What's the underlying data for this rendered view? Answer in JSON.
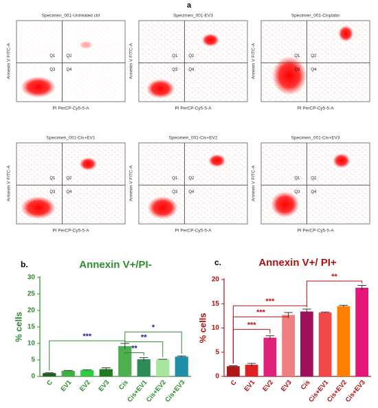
{
  "panel_a": {
    "label": "a",
    "plots": [
      {
        "title": "Specimen_001-Untreated ctrl",
        "x_label": "PI PerCP-Cy5-5-A",
        "y_label": "Annexin V FITC-A",
        "quadrants": [
          "Q1",
          "Q2",
          "Q3",
          "Q4"
        ]
      },
      {
        "title": "Specimen_001-EV3",
        "x_label": "PI PerCP-Cy5-5-A",
        "y_label": "Annexin V FITC-A",
        "quadrants": [
          "Q1",
          "Q2",
          "Q3",
          "Q4"
        ]
      },
      {
        "title": "Specimen_001-Cisplatin",
        "x_label": "PI PerCP-Cy5-5-A",
        "y_label": "Annexin V FITC-A",
        "quadrants": [
          "Q1",
          "Q2",
          "Q3",
          "Q4"
        ]
      },
      {
        "title": "Specimen_001-Cis+EV1",
        "x_label": "PI PerCP-Cy5-5-A",
        "y_label": "Annexin V FITC-A",
        "quadrants": [
          "Q1",
          "Q2",
          "Q3",
          "Q4"
        ]
      },
      {
        "title": "Specimen_001-Cis+EV2",
        "x_label": "PI PerCP-Cy5-5-A",
        "y_label": "Annexin V FITC-A",
        "quadrants": [
          "Q1",
          "Q2",
          "Q3",
          "Q4"
        ]
      },
      {
        "title": "Specimen_001-Cis+EV3",
        "x_label": "PI PerCP-Cy5-5-A",
        "y_label": "Annexin V FITC-A",
        "quadrants": [
          "Q1",
          "Q2",
          "Q3",
          "Q4"
        ]
      }
    ]
  },
  "chart_data": [
    {
      "type": "bar",
      "label": "b.",
      "title": "Annexin V+/PI-",
      "title_color": "#2e8b2e",
      "y_label": "% cells",
      "categories": [
        "C",
        "EV1",
        "EV2",
        "EV3",
        "Cis",
        "Cis+EV1",
        "Cis+EV2",
        "Cis+EV3"
      ],
      "values": [
        1.0,
        1.7,
        1.9,
        2.2,
        9.2,
        5.2,
        5.2,
        6.0
      ],
      "errors": [
        0.1,
        0.1,
        0.1,
        0.4,
        0.8,
        0.5,
        0,
        0.2
      ],
      "colors": [
        "#1f5f1f",
        "#3cb043",
        "#2ecc40",
        "#1e7b1e",
        "#4caf50",
        "#2e8b57",
        "#a8e6a0",
        "#1e90a8"
      ],
      "ylim": [
        0,
        30
      ],
      "yticks": [
        0,
        5,
        10,
        15,
        20,
        25,
        30
      ],
      "annotations": [
        {
          "text": "***",
          "from": "C",
          "to": "Cis",
          "y": 10.8,
          "color": "#1a1aa0"
        },
        {
          "text": "**",
          "from": "Cis",
          "to": "Cis+EV1",
          "y": 7.2,
          "color": "#1a1aa0"
        },
        {
          "text": "**",
          "from": "Cis",
          "to": "Cis+EV2",
          "y": 10.5,
          "color": "#1a1aa0"
        },
        {
          "text": "*",
          "from": "Cis",
          "to": "Cis+EV3",
          "y": 13.5,
          "color": "#1a1aa0"
        }
      ]
    },
    {
      "type": "bar",
      "label": "c.",
      "title": "Annexin V+/ PI+",
      "title_color": "#b01010",
      "y_label": "% cells",
      "categories": [
        "C",
        "EV1",
        "EV2",
        "EV3",
        "Cis",
        "Cis+EV1",
        "Cis+EV2",
        "Cis+EV3"
      ],
      "values": [
        2.1,
        2.4,
        8.0,
        12.7,
        13.4,
        13.2,
        14.5,
        18.3
      ],
      "errors": [
        0.1,
        0.3,
        0.4,
        0.5,
        0.5,
        0.1,
        0.2,
        0.5
      ],
      "colors": [
        "#b01818",
        "#e02020",
        "#e0207a",
        "#f08080",
        "#a0105a",
        "#f04848",
        "#ff7f00",
        "#e6157a"
      ],
      "ylim": [
        0,
        20
      ],
      "yticks": [
        0,
        5,
        10,
        15,
        20
      ],
      "annotations": [
        {
          "text": "***",
          "from": "C",
          "to": "EV2",
          "y": 9.7,
          "color": "#c01010"
        },
        {
          "text": "***",
          "from": "C",
          "to": "EV3",
          "y": 12.3,
          "color": "#c01010"
        },
        {
          "text": "***",
          "from": "C",
          "to": "Cis",
          "y": 14.6,
          "color": "#c01010"
        },
        {
          "text": "**",
          "from": "Cis",
          "to": "Cis+EV3",
          "y": 19.7,
          "color": "#c01010"
        }
      ]
    }
  ]
}
